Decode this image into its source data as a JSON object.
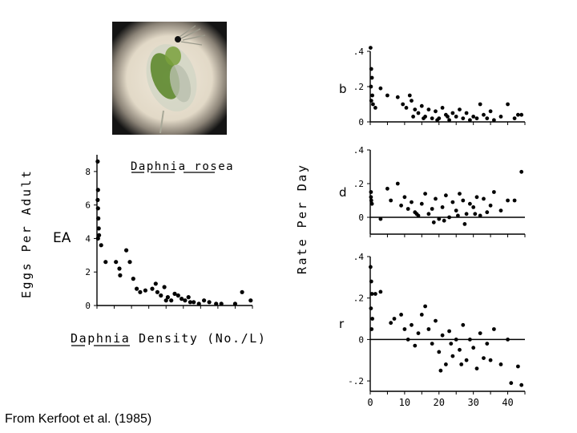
{
  "caption": "From Kerfoot et al. (1985)",
  "photo": {
    "subject": "Daphnia (water flea) micrograph",
    "colors": {
      "ring": "#1a1a1a",
      "field": "#e9e1d2",
      "body": "#cfd2c4",
      "gut": "#5f8a2f",
      "eye": "#111111"
    }
  },
  "chart_data": [
    {
      "type": "scatter",
      "title": "Daphnia rosea",
      "xlabel": "Daphnia Density (No./L)",
      "ylabel": "Eggs Per Adult",
      "series_label": "EA",
      "xlim": [
        0,
        45
      ],
      "ylim": [
        0,
        9
      ],
      "yticks": [
        "0",
        "2",
        "4",
        "6",
        "8"
      ],
      "points": [
        [
          0.2,
          8.6
        ],
        [
          0.3,
          6.9
        ],
        [
          0.2,
          6.3
        ],
        [
          0.3,
          5.8
        ],
        [
          0.4,
          5.2
        ],
        [
          0.5,
          4.6
        ],
        [
          0.6,
          4.2
        ],
        [
          0.3,
          4.0
        ],
        [
          1.2,
          3.6
        ],
        [
          2.5,
          2.6
        ],
        [
          5.5,
          2.6
        ],
        [
          6.5,
          2.2
        ],
        [
          6.7,
          1.8
        ],
        [
          8.5,
          3.3
        ],
        [
          9.5,
          2.6
        ],
        [
          10.5,
          1.6
        ],
        [
          11.5,
          1.0
        ],
        [
          12.5,
          0.8
        ],
        [
          14.0,
          0.9
        ],
        [
          16.0,
          1.0
        ],
        [
          17.0,
          1.3
        ],
        [
          17.5,
          0.8
        ],
        [
          18.5,
          0.6
        ],
        [
          19.5,
          1.1
        ],
        [
          20.5,
          0.5
        ],
        [
          21.5,
          0.3
        ],
        [
          22.5,
          0.7
        ],
        [
          23.5,
          0.6
        ],
        [
          24.5,
          0.4
        ],
        [
          25.5,
          0.3
        ],
        [
          26.5,
          0.5
        ],
        [
          28.0,
          0.2
        ],
        [
          29.5,
          0.1
        ],
        [
          31.0,
          0.3
        ],
        [
          32.5,
          0.2
        ],
        [
          34.5,
          0.1
        ],
        [
          36.0,
          0.1
        ],
        [
          40.0,
          0.1
        ],
        [
          42.0,
          0.8
        ],
        [
          44.5,
          0.3
        ],
        [
          27.0,
          0.2
        ],
        [
          20.0,
          0.3
        ]
      ]
    },
    {
      "type": "scatter",
      "label": "b",
      "ylabel": "Rate Per Day",
      "xlim": [
        0,
        45
      ],
      "ylim": [
        0,
        0.4
      ],
      "yticks": [
        ".4",
        ".2",
        "0"
      ],
      "points": [
        [
          0.1,
          0.42
        ],
        [
          0.3,
          0.3
        ],
        [
          0.5,
          0.25
        ],
        [
          0.2,
          0.2
        ],
        [
          0.6,
          0.15
        ],
        [
          0.3,
          0.12
        ],
        [
          0.8,
          0.1
        ],
        [
          1.5,
          0.08
        ],
        [
          3,
          0.19
        ],
        [
          5,
          0.15
        ],
        [
          8,
          0.14
        ],
        [
          9.5,
          0.1
        ],
        [
          10.5,
          0.08
        ],
        [
          11.5,
          0.15
        ],
        [
          12,
          0.12
        ],
        [
          13,
          0.07
        ],
        [
          14,
          0.05
        ],
        [
          15,
          0.09
        ],
        [
          16,
          0.03
        ],
        [
          17,
          0.07
        ],
        [
          18,
          0.02
        ],
        [
          19,
          0.06
        ],
        [
          20,
          0.02
        ],
        [
          21,
          0.08
        ],
        [
          22,
          0.04
        ],
        [
          23,
          0.01
        ],
        [
          24,
          0.05
        ],
        [
          25,
          0.03
        ],
        [
          26,
          0.07
        ],
        [
          27,
          0.02
        ],
        [
          28,
          0.05
        ],
        [
          29,
          0.01
        ],
        [
          30,
          0.03
        ],
        [
          31,
          0.02
        ],
        [
          32,
          0.1
        ],
        [
          33,
          0.04
        ],
        [
          34,
          0.02
        ],
        [
          35,
          0.06
        ],
        [
          36,
          0.01
        ],
        [
          38,
          0.03
        ],
        [
          40,
          0.1
        ],
        [
          42,
          0.02
        ],
        [
          43,
          0.04
        ],
        [
          44,
          0.04
        ],
        [
          12.5,
          0.03
        ],
        [
          15.5,
          0.02
        ],
        [
          19.5,
          0.01
        ],
        [
          22.5,
          0.03
        ]
      ]
    },
    {
      "type": "scatter",
      "label": "d",
      "xlim": [
        0,
        45
      ],
      "ylim": [
        -0.1,
        0.4
      ],
      "yticks": [
        ".4",
        ".2",
        "0"
      ],
      "points": [
        [
          0.2,
          0.15
        ],
        [
          0.3,
          0.1
        ],
        [
          0.5,
          0.08
        ],
        [
          0.2,
          0.12
        ],
        [
          3,
          -0.01
        ],
        [
          5,
          0.17
        ],
        [
          6,
          0.1
        ],
        [
          8,
          0.2
        ],
        [
          9,
          0.07
        ],
        [
          10,
          0.12
        ],
        [
          11,
          0.05
        ],
        [
          12,
          0.09
        ],
        [
          13,
          0.03
        ],
        [
          14,
          0.01
        ],
        [
          15,
          0.08
        ],
        [
          16,
          0.14
        ],
        [
          17,
          0.02
        ],
        [
          18,
          0.05
        ],
        [
          19,
          0.11
        ],
        [
          20,
          -0.01
        ],
        [
          21,
          0.06
        ],
        [
          22,
          0.13
        ],
        [
          23,
          0.0
        ],
        [
          24,
          0.09
        ],
        [
          25,
          0.04
        ],
        [
          26,
          0.14
        ],
        [
          27,
          0.1
        ],
        [
          28,
          0.02
        ],
        [
          29,
          0.08
        ],
        [
          30,
          0.06
        ],
        [
          31,
          0.12
        ],
        [
          32,
          0.01
        ],
        [
          33,
          0.11
        ],
        [
          34,
          0.03
        ],
        [
          35,
          0.07
        ],
        [
          36,
          0.15
        ],
        [
          38,
          0.04
        ],
        [
          40,
          0.1
        ],
        [
          42,
          0.1
        ],
        [
          44,
          0.27
        ],
        [
          13.5,
          0.02
        ],
        [
          18.5,
          -0.03
        ],
        [
          21.5,
          -0.02
        ],
        [
          25.5,
          0.01
        ],
        [
          27.5,
          -0.04
        ],
        [
          30.5,
          0.02
        ]
      ]
    },
    {
      "type": "scatter",
      "label": "r",
      "xlabel": "",
      "xlim": [
        0,
        45
      ],
      "ylim": [
        -0.25,
        0.4
      ],
      "yticks": [
        ".4",
        ".2",
        "0",
        "-.2"
      ],
      "xticks": [
        "0",
        "10",
        "20",
        "30",
        "40"
      ],
      "points": [
        [
          0.1,
          0.35
        ],
        [
          0.3,
          0.28
        ],
        [
          0.5,
          0.22
        ],
        [
          0.2,
          0.15
        ],
        [
          0.6,
          0.1
        ],
        [
          0.4,
          0.05
        ],
        [
          1.5,
          0.22
        ],
        [
          3,
          0.23
        ],
        [
          6,
          0.08
        ],
        [
          7,
          0.1
        ],
        [
          9,
          0.12
        ],
        [
          10,
          0.05
        ],
        [
          11,
          0.0
        ],
        [
          12,
          0.07
        ],
        [
          13,
          -0.03
        ],
        [
          14,
          0.03
        ],
        [
          15,
          0.12
        ],
        [
          16,
          0.16
        ],
        [
          17,
          0.05
        ],
        [
          18,
          -0.02
        ],
        [
          19,
          0.09
        ],
        [
          20,
          -0.06
        ],
        [
          21,
          0.02
        ],
        [
          22,
          -0.12
        ],
        [
          23,
          0.04
        ],
        [
          24,
          -0.08
        ],
        [
          25,
          0.0
        ],
        [
          26,
          -0.05
        ],
        [
          27,
          0.07
        ],
        [
          28,
          -0.1
        ],
        [
          29,
          0.0
        ],
        [
          30,
          -0.04
        ],
        [
          31,
          -0.14
        ],
        [
          32,
          0.03
        ],
        [
          33,
          -0.09
        ],
        [
          34,
          -0.02
        ],
        [
          35,
          -0.1
        ],
        [
          36,
          0.05
        ],
        [
          38,
          -0.12
        ],
        [
          40,
          0.0
        ],
        [
          41,
          -0.21
        ],
        [
          43,
          -0.13
        ],
        [
          44,
          -0.22
        ],
        [
          20.5,
          -0.15
        ],
        [
          23.5,
          -0.02
        ],
        [
          26.5,
          -0.12
        ]
      ]
    }
  ]
}
